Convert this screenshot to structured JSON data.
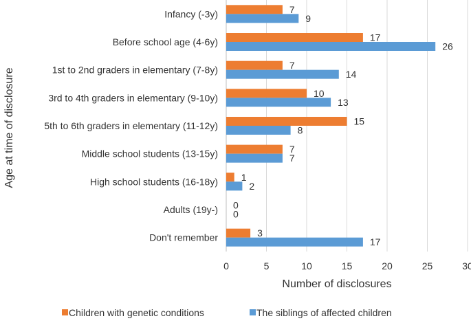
{
  "chart_data": {
    "type": "bar",
    "orientation": "horizontal",
    "categories": [
      "Infancy (-3y)",
      "Before school age (4-6y)",
      "1st to 2nd graders in elementary (7-8y)",
      "3rd to 4th graders in elementary (9-10y)",
      "5th to 6th graders in elementary (11-12y)",
      "Middle school students (13-15y)",
      "High school students (16-18y)",
      "Adults (19y-)",
      "Don't remember"
    ],
    "series": [
      {
        "name": "Children with genetic conditions",
        "color": "#ED7D31",
        "values": [
          7,
          17,
          7,
          10,
          15,
          7,
          1,
          0,
          3
        ]
      },
      {
        "name": "The siblings of affected children",
        "color": "#5B9BD5",
        "values": [
          9,
          26,
          14,
          13,
          8,
          7,
          2,
          0,
          17
        ]
      }
    ],
    "xlabel": "Number of disclosures",
    "ylabel": "Age at time of disclosure",
    "xlim": [
      0,
      30
    ],
    "xticks": [
      "0",
      "5",
      "10",
      "15",
      "20",
      "25",
      "30"
    ],
    "grid": "vertical",
    "legend": "bottom"
  }
}
